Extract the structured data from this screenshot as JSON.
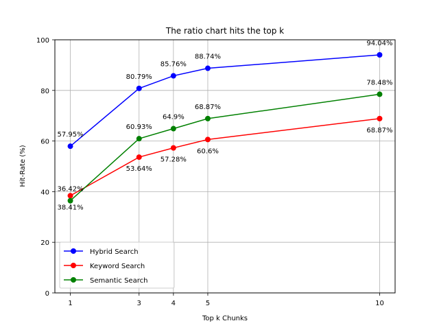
{
  "chart_data": {
    "type": "line",
    "title": "The ratio chart hits the top k",
    "xlabel": "Top k Chunks",
    "ylabel": "Hit-Rate (%)",
    "x": [
      1,
      3,
      4,
      5,
      10
    ],
    "xticks": [
      "1",
      "3",
      "4",
      "5",
      "10"
    ],
    "yticks": [
      "0",
      "20",
      "40",
      "60",
      "80",
      "100"
    ],
    "ylim": [
      0,
      100
    ],
    "xlim": [
      0.55,
      10.45
    ],
    "grid": true,
    "legend_position": "lower-left",
    "series": [
      {
        "name": "Hybrid Search",
        "color": "#0000ff",
        "values": [
          57.95,
          80.79,
          85.76,
          88.74,
          94.04
        ],
        "labels": [
          "57.95%",
          "80.79%",
          "85.76%",
          "88.74%",
          "94.04%"
        ],
        "label_place": [
          "above",
          "above",
          "above",
          "above",
          "above"
        ]
      },
      {
        "name": "Keyword Search",
        "color": "#ff0000",
        "values": [
          38.41,
          53.64,
          57.28,
          60.6,
          68.87
        ],
        "labels": [
          "38.41%",
          "53.64%",
          "57.28%",
          "60.6%",
          "68.87%"
        ],
        "label_place": [
          "below",
          "below",
          "below",
          "below",
          "below"
        ]
      },
      {
        "name": "Semantic Search",
        "color": "#008000",
        "values": [
          36.42,
          60.93,
          64.9,
          68.87,
          78.48
        ],
        "labels": [
          "36.42%",
          "60.93%",
          "64.9%",
          "68.87%",
          "78.48%"
        ],
        "label_place": [
          "above",
          "above",
          "above",
          "above",
          "above"
        ]
      }
    ]
  }
}
